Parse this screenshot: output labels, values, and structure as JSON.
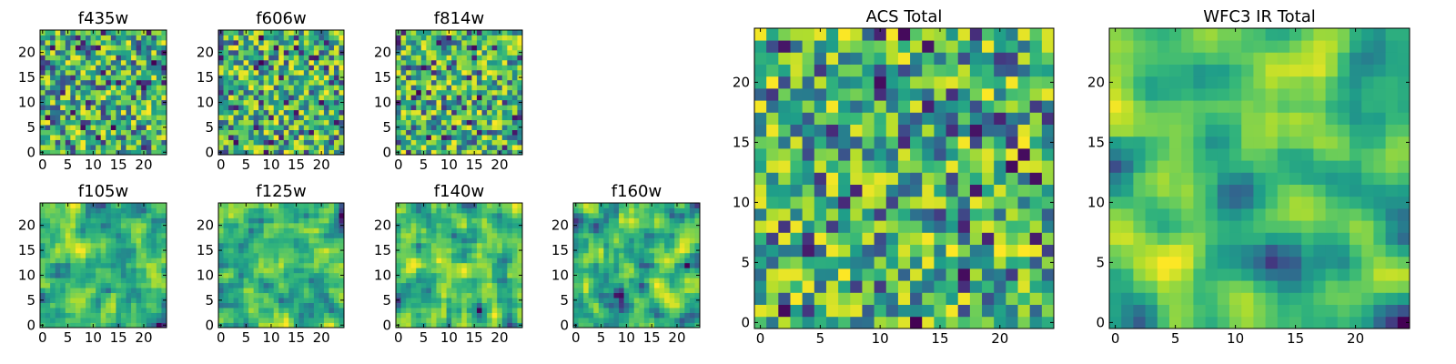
{
  "chart_data": [
    {
      "type": "heatmap",
      "title": "f435w",
      "x_ticks": [
        "0",
        "5",
        "10",
        "15",
        "20"
      ],
      "y_ticks": [
        "0",
        "5",
        "10",
        "15",
        "20"
      ],
      "xlim": [
        -0.5,
        24.5
      ],
      "ylim": [
        -0.5,
        24.5
      ],
      "colormap": "viridis",
      "seed": 11,
      "smooth": 0
    },
    {
      "type": "heatmap",
      "title": "f606w",
      "x_ticks": [
        "0",
        "5",
        "10",
        "15",
        "20"
      ],
      "y_ticks": [
        "0",
        "5",
        "10",
        "15",
        "20"
      ],
      "xlim": [
        -0.5,
        24.5
      ],
      "ylim": [
        -0.5,
        24.5
      ],
      "colormap": "viridis",
      "seed": 23,
      "smooth": 0
    },
    {
      "type": "heatmap",
      "title": "f814w",
      "x_ticks": [
        "0",
        "5",
        "10",
        "15",
        "20"
      ],
      "y_ticks": [
        "0",
        "5",
        "10",
        "15",
        "20"
      ],
      "xlim": [
        -0.5,
        24.5
      ],
      "ylim": [
        -0.5,
        24.5
      ],
      "colormap": "viridis",
      "seed": 37,
      "smooth": 0
    },
    {
      "type": "heatmap",
      "title": "f105w",
      "x_ticks": [
        "0",
        "5",
        "10",
        "15",
        "20"
      ],
      "y_ticks": [
        "0",
        "5",
        "10",
        "15",
        "20"
      ],
      "xlim": [
        -0.5,
        24.5
      ],
      "ylim": [
        -0.5,
        24.5
      ],
      "colormap": "viridis",
      "seed": 41,
      "smooth": 1
    },
    {
      "type": "heatmap",
      "title": "f125w",
      "x_ticks": [
        "0",
        "5",
        "10",
        "15",
        "20"
      ],
      "y_ticks": [
        "0",
        "5",
        "10",
        "15",
        "20"
      ],
      "xlim": [
        -0.5,
        24.5
      ],
      "ylim": [
        -0.5,
        24.5
      ],
      "colormap": "viridis",
      "seed": 53,
      "smooth": 1
    },
    {
      "type": "heatmap",
      "title": "f140w",
      "x_ticks": [
        "0",
        "5",
        "10",
        "15",
        "20"
      ],
      "y_ticks": [
        "0",
        "5",
        "10",
        "15",
        "20"
      ],
      "xlim": [
        -0.5,
        24.5
      ],
      "ylim": [
        -0.5,
        24.5
      ],
      "colormap": "viridis",
      "seed": 67,
      "smooth": 1
    },
    {
      "type": "heatmap",
      "title": "f160w",
      "x_ticks": [
        "0",
        "5",
        "10",
        "15",
        "20"
      ],
      "y_ticks": [
        "0",
        "5",
        "10",
        "15",
        "20"
      ],
      "xlim": [
        -0.5,
        24.5
      ],
      "ylim": [
        -0.5,
        24.5
      ],
      "colormap": "viridis",
      "seed": 79,
      "smooth": 1
    },
    {
      "type": "heatmap",
      "title": "ACS Total",
      "x_ticks": [
        "0",
        "5",
        "10",
        "15",
        "20"
      ],
      "y_ticks": [
        "0",
        "5",
        "10",
        "15",
        "20"
      ],
      "xlim": [
        -0.5,
        24.5
      ],
      "ylim": [
        -0.5,
        24.5
      ],
      "colormap": "viridis",
      "seed": 97,
      "smooth": 0
    },
    {
      "type": "heatmap",
      "title": "WFC3 IR Total",
      "x_ticks": [
        "0",
        "5",
        "10",
        "15",
        "20"
      ],
      "y_ticks": [
        "0",
        "5",
        "10",
        "15",
        "20"
      ],
      "xlim": [
        -0.5,
        24.5
      ],
      "ylim": [
        -0.5,
        24.5
      ],
      "colormap": "viridis",
      "seed": 131,
      "smooth": 2
    }
  ]
}
